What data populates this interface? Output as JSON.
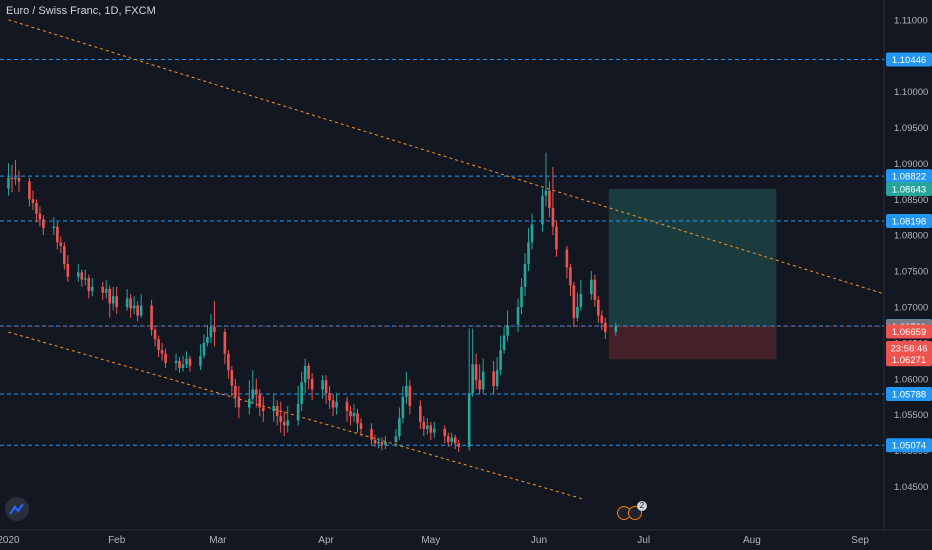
{
  "header": {
    "title": "Euro / Swiss Franc, 1D, FXCM"
  },
  "colors": {
    "up": "#26a69a",
    "down": "#ef5350",
    "level_line": "#2196f3",
    "trend_line": "#f7931a",
    "profit_zone": "#1d4a4a",
    "loss_zone": "#4d2229"
  },
  "events": {
    "badge": "2"
  },
  "chart_data": {
    "type": "candlestick",
    "title": "Euro / Swiss Franc, 1D, FXCM",
    "ylim": [
      1.042,
      1.1115
    ],
    "y_ticks": [
      "1.11000",
      "1.10000",
      "1.09500",
      "1.09000",
      "1.08500",
      "1.08000",
      "1.07500",
      "1.07000",
      "1.06500",
      "1.06000",
      "1.05500",
      "1.05000",
      "1.04500"
    ],
    "x_ticks": [
      "2020",
      "Feb",
      "Mar",
      "Apr",
      "May",
      "Jun",
      "Jul",
      "Aug",
      "Sep"
    ],
    "x_tick_days": [
      0,
      31,
      60,
      91,
      121,
      152,
      182,
      213,
      244
    ],
    "horizontal_levels": [
      {
        "price": 1.10446,
        "label": "1.10446"
      },
      {
        "price": 1.08822,
        "label": "1.08822"
      },
      {
        "price": 1.08198,
        "label": "1.08198"
      },
      {
        "price": 1.06734,
        "label": "1.06734"
      },
      {
        "price": 1.05788,
        "label": "1.05788"
      },
      {
        "price": 1.05074,
        "label": "1.05074"
      }
    ],
    "price_labels": [
      {
        "price": 1.08643,
        "label": "1.08643",
        "color": "#26a69a"
      },
      {
        "price": 1.06731,
        "label": "1.06731",
        "color": "#787b86"
      },
      {
        "price": 1.06659,
        "label": "1.06659",
        "color": "#ef5350"
      },
      {
        "price": 1.0643,
        "label": "23:56:46",
        "color": "#ef5350"
      },
      {
        "price": 1.06271,
        "label": "1.06271",
        "color": "#ef5350"
      }
    ],
    "trend_lines": [
      {
        "from": [
          0,
          1.11
        ],
        "to": [
          251,
          1.0718
        ]
      },
      {
        "from": [
          0,
          1.0665
        ],
        "to": [
          165,
          1.0432
        ]
      }
    ],
    "position": {
      "from_day": 172,
      "to_day": 220,
      "entry": 1.06734,
      "target": 1.08643,
      "stop": 1.06271
    },
    "candles": [
      [
        0,
        1.0865,
        1.088,
        1.09,
        1.0855
      ],
      [
        1,
        1.088,
        1.0878,
        1.0898,
        1.086
      ],
      [
        2,
        1.0878,
        1.088,
        1.0905,
        1.087
      ],
      [
        3,
        1.088,
        1.0875,
        1.089,
        1.086
      ],
      [
        6,
        1.0875,
        1.085,
        1.088,
        1.084
      ],
      [
        7,
        1.085,
        1.0845,
        1.0862,
        1.0835
      ],
      [
        8,
        1.0845,
        1.083,
        1.085,
        1.0818
      ],
      [
        9,
        1.083,
        1.0822,
        1.084,
        1.0812
      ],
      [
        10,
        1.0822,
        1.081,
        1.0828,
        1.08
      ],
      [
        13,
        1.081,
        1.0812,
        1.0825,
        1.08
      ],
      [
        14,
        1.0812,
        1.079,
        1.0818,
        1.078
      ],
      [
        15,
        1.079,
        1.0785,
        1.0798,
        1.0775
      ],
      [
        16,
        1.0785,
        1.076,
        1.079,
        1.0752
      ],
      [
        17,
        1.076,
        1.0742,
        1.0772,
        1.0735
      ],
      [
        20,
        1.0742,
        1.0748,
        1.076,
        1.0735
      ],
      [
        21,
        1.0748,
        1.0738,
        1.0752,
        1.0728
      ],
      [
        22,
        1.0738,
        1.074,
        1.0752,
        1.073
      ],
      [
        23,
        1.074,
        1.0722,
        1.0745,
        1.0712
      ],
      [
        24,
        1.0722,
        1.0728,
        1.074,
        1.0715
      ],
      [
        27,
        1.0728,
        1.072,
        1.0735,
        1.071
      ],
      [
        28,
        1.072,
        1.0725,
        1.0738,
        1.0712
      ],
      [
        29,
        1.0725,
        1.0705,
        1.073,
        1.0685
      ],
      [
        30,
        1.0705,
        1.0715,
        1.0728,
        1.0695
      ],
      [
        31,
        1.0715,
        1.07,
        1.0728,
        1.069
      ],
      [
        34,
        1.07,
        1.0712,
        1.0725,
        1.0695
      ],
      [
        35,
        1.0712,
        1.0698,
        1.0718,
        1.0685
      ],
      [
        36,
        1.0698,
        1.0702,
        1.0715,
        1.069
      ],
      [
        37,
        1.0702,
        1.0688,
        1.0708,
        1.068
      ],
      [
        38,
        1.0688,
        1.0702,
        1.0718,
        1.0685
      ],
      [
        41,
        1.0702,
        1.0668,
        1.071,
        1.066
      ],
      [
        42,
        1.0668,
        1.0655,
        1.0672,
        1.0645
      ],
      [
        43,
        1.0655,
        1.064,
        1.066,
        1.063
      ],
      [
        44,
        1.064,
        1.0635,
        1.065,
        1.0625
      ],
      [
        45,
        1.0635,
        1.0622,
        1.0642,
        1.0615
      ],
      [
        48,
        1.0622,
        1.0625,
        1.0635,
        1.0612
      ],
      [
        49,
        1.0625,
        1.0615,
        1.063,
        1.0608
      ],
      [
        50,
        1.0615,
        1.062,
        1.0632,
        1.061
      ],
      [
        51,
        1.062,
        1.0628,
        1.0638,
        1.0615
      ],
      [
        52,
        1.0628,
        1.0618,
        1.0632,
        1.061
      ],
      [
        55,
        1.0618,
        1.0632,
        1.0648,
        1.0612
      ],
      [
        56,
        1.0632,
        1.065,
        1.0662,
        1.0628
      ],
      [
        57,
        1.065,
        1.0658,
        1.0675,
        1.0645
      ],
      [
        58,
        1.0658,
        1.0672,
        1.069,
        1.065
      ],
      [
        59,
        1.0672,
        1.0665,
        1.0708,
        1.0645
      ],
      [
        62,
        1.0665,
        1.0635,
        1.067,
        1.062
      ],
      [
        63,
        1.0635,
        1.0612,
        1.064,
        1.06
      ],
      [
        64,
        1.0612,
        1.059,
        1.0618,
        1.0575
      ],
      [
        65,
        1.059,
        1.0575,
        1.06,
        1.056
      ],
      [
        66,
        1.0575,
        1.056,
        1.059,
        1.0545
      ],
      [
        69,
        1.056,
        1.0572,
        1.0598,
        1.055
      ],
      [
        70,
        1.0572,
        1.0585,
        1.0612,
        1.0565
      ],
      [
        71,
        1.0585,
        1.0578,
        1.06,
        1.056
      ],
      [
        72,
        1.0578,
        1.056,
        1.0585,
        1.0548
      ],
      [
        73,
        1.056,
        1.0555,
        1.0575,
        1.054
      ],
      [
        76,
        1.0555,
        1.0562,
        1.0578,
        1.054
      ],
      [
        77,
        1.0562,
        1.0548,
        1.057,
        1.0535
      ],
      [
        78,
        1.0548,
        1.054,
        1.0568,
        1.0525
      ],
      [
        79,
        1.054,
        1.0535,
        1.0555,
        1.052
      ],
      [
        80,
        1.0535,
        1.0542,
        1.0562,
        1.0525
      ],
      [
        83,
        1.0542,
        1.0565,
        1.059,
        1.0535
      ],
      [
        84,
        1.0565,
        1.0595,
        1.061,
        1.0555
      ],
      [
        85,
        1.0595,
        1.0618,
        1.0628,
        1.058
      ],
      [
        86,
        1.0618,
        1.06,
        1.0622,
        1.0585
      ],
      [
        87,
        1.06,
        1.0585,
        1.0608,
        1.057
      ],
      [
        90,
        1.0585,
        1.0598,
        1.0605,
        1.0572
      ],
      [
        91,
        1.0598,
        1.058,
        1.0605,
        1.0565
      ],
      [
        92,
        1.058,
        1.057,
        1.059,
        1.0558
      ],
      [
        93,
        1.057,
        1.056,
        1.0578,
        1.0548
      ],
      [
        94,
        1.056,
        1.0568,
        1.058,
        1.055
      ],
      [
        97,
        1.0568,
        1.0555,
        1.0575,
        1.054
      ],
      [
        98,
        1.0555,
        1.0548,
        1.0562,
        1.0535
      ],
      [
        99,
        1.0548,
        1.0552,
        1.0565,
        1.054
      ],
      [
        100,
        1.0552,
        1.0538,
        1.0558,
        1.0525
      ],
      [
        101,
        1.0538,
        1.053,
        1.0545,
        1.052
      ],
      [
        104,
        1.053,
        1.0515,
        1.0538,
        1.0508
      ],
      [
        105,
        1.0515,
        1.051,
        1.0522,
        1.0505
      ],
      [
        106,
        1.051,
        1.0512,
        1.0518,
        1.0503
      ],
      [
        107,
        1.0512,
        1.0508,
        1.0518,
        1.05
      ],
      [
        108,
        1.0508,
        1.0512,
        1.052,
        1.0502
      ],
      [
        111,
        1.0512,
        1.052,
        1.053,
        1.0505
      ],
      [
        112,
        1.052,
        1.0545,
        1.056,
        1.0515
      ],
      [
        113,
        1.0545,
        1.0575,
        1.059,
        1.0538
      ],
      [
        114,
        1.0575,
        1.059,
        1.061,
        1.0565
      ],
      [
        115,
        1.059,
        1.0562,
        1.0598,
        1.055
      ],
      [
        118,
        1.0562,
        1.054,
        1.057,
        1.053
      ],
      [
        119,
        1.054,
        1.053,
        1.0548,
        1.052
      ],
      [
        120,
        1.053,
        1.0535,
        1.0545,
        1.0522
      ],
      [
        121,
        1.0535,
        1.0525,
        1.054,
        1.0515
      ],
      [
        122,
        1.0525,
        1.053,
        1.054,
        1.0518
      ],
      [
        125,
        1.053,
        1.052,
        1.0535,
        1.051
      ],
      [
        126,
        1.052,
        1.0512,
        1.0525,
        1.0505
      ],
      [
        127,
        1.0512,
        1.0518,
        1.0525,
        1.0508
      ],
      [
        128,
        1.0518,
        1.051,
        1.0522,
        1.0502
      ],
      [
        129,
        1.051,
        1.0505,
        1.0515,
        1.0498
      ],
      [
        132,
        1.0505,
        1.058,
        1.067,
        1.05
      ],
      [
        133,
        1.058,
        1.062,
        1.067,
        1.0575
      ],
      [
        134,
        1.062,
        1.0598,
        1.0635,
        1.0585
      ],
      [
        135,
        1.0598,
        1.0585,
        1.062,
        1.0578
      ],
      [
        136,
        1.0585,
        1.061,
        1.0628,
        1.058
      ],
      [
        139,
        1.061,
        1.059,
        1.0625,
        1.0578
      ],
      [
        140,
        1.059,
        1.0612,
        1.063,
        1.0585
      ],
      [
        141,
        1.0612,
        1.064,
        1.066,
        1.0605
      ],
      [
        142,
        1.064,
        1.066,
        1.0672,
        1.0635
      ],
      [
        143,
        1.066,
        1.0675,
        1.0695,
        1.0652
      ],
      [
        146,
        1.0675,
        1.07,
        1.0712,
        1.0665
      ],
      [
        147,
        1.07,
        1.0728,
        1.074,
        1.069
      ],
      [
        148,
        1.0728,
        1.076,
        1.0775,
        1.0715
      ],
      [
        149,
        1.076,
        1.079,
        1.081,
        1.075
      ],
      [
        150,
        1.079,
        1.0815,
        1.083,
        1.078
      ],
      [
        153,
        1.0815,
        1.0855,
        1.0865,
        1.0805
      ],
      [
        154,
        1.0855,
        1.0862,
        1.0915,
        1.084
      ],
      [
        155,
        1.0862,
        1.0838,
        1.0875,
        1.0825
      ],
      [
        156,
        1.0838,
        1.0812,
        1.0895,
        1.08
      ],
      [
        157,
        1.0812,
        1.078,
        1.082,
        1.077
      ],
      [
        160,
        1.078,
        1.0755,
        1.0785,
        1.074
      ],
      [
        161,
        1.0755,
        1.073,
        1.076,
        1.0715
      ],
      [
        162,
        1.073,
        1.0685,
        1.0735,
        1.0672
      ],
      [
        163,
        1.0685,
        1.07,
        1.072,
        1.068
      ],
      [
        164,
        1.07,
        1.0718,
        1.0738,
        1.0695
      ],
      [
        167,
        1.0718,
        1.0738,
        1.075,
        1.071
      ],
      [
        168,
        1.0738,
        1.071,
        1.0745,
        1.07
      ],
      [
        169,
        1.071,
        1.0688,
        1.0715,
        1.0678
      ],
      [
        170,
        1.0688,
        1.0678,
        1.0695,
        1.0668
      ],
      [
        171,
        1.0678,
        1.0665,
        1.0685,
        1.0655
      ],
      [
        174,
        1.0665,
        1.0673,
        1.0678,
        1.066
      ]
    ]
  }
}
